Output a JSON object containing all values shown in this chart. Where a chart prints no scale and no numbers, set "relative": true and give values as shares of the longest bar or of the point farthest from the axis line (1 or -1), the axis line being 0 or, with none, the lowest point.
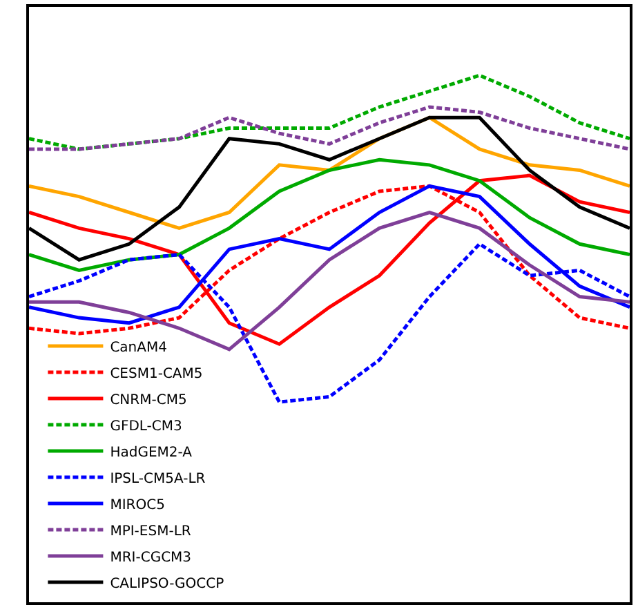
{
  "chart_data": {
    "type": "line",
    "relative": true,
    "legend": "bottom left",
    "categories": [
      null,
      null,
      null,
      null,
      null,
      null,
      null,
      null,
      null,
      null,
      null,
      null,
      null
    ],
    "series": [
      {
        "name": "CanAM4",
        "color": "#ffa500",
        "line_style": "solid",
        "values": [
          0.79,
          0.77,
          0.74,
          0.71,
          0.74,
          0.83,
          0.82,
          0.88,
          0.92,
          0.86,
          0.83,
          0.82,
          0.79
        ]
      },
      {
        "name": "CESM1-CAM5",
        "color": "#ff0000",
        "line_style": "dashed",
        "values": [
          0.52,
          0.51,
          0.52,
          0.54,
          0.63,
          0.69,
          0.74,
          0.78,
          0.79,
          0.74,
          0.62,
          0.54,
          0.52
        ]
      },
      {
        "name": "CNRM-CM5",
        "color": "#ff0000",
        "line_style": "solid",
        "values": [
          0.74,
          0.71,
          0.69,
          0.66,
          0.53,
          0.49,
          0.56,
          0.62,
          0.72,
          0.8,
          0.81,
          0.76,
          0.74
        ]
      },
      {
        "name": "GFDL-CM3",
        "color": "#00aa00",
        "line_style": "dashed",
        "values": [
          0.88,
          0.86,
          0.87,
          0.88,
          0.9,
          0.9,
          0.9,
          0.94,
          0.97,
          1.0,
          0.96,
          0.91,
          0.88
        ]
      },
      {
        "name": "HadGEM2-A",
        "color": "#00aa00",
        "line_style": "solid",
        "values": [
          0.66,
          0.63,
          0.65,
          0.66,
          0.71,
          0.78,
          0.82,
          0.84,
          0.83,
          0.8,
          0.73,
          0.68,
          0.66
        ]
      },
      {
        "name": "IPSL-CM5A-LR",
        "color": "#0000ff",
        "line_style": "dashed",
        "values": [
          0.58,
          0.61,
          0.65,
          0.66,
          0.56,
          0.38,
          0.39,
          0.46,
          0.58,
          0.68,
          0.62,
          0.63,
          0.58
        ]
      },
      {
        "name": "MIROC5",
        "color": "#0000ff",
        "line_style": "solid",
        "values": [
          0.56,
          0.54,
          0.53,
          0.56,
          0.67,
          0.69,
          0.67,
          0.74,
          0.79,
          0.77,
          0.68,
          0.6,
          0.56
        ]
      },
      {
        "name": "MPI-ESM-LR",
        "color": "#7f3f98",
        "line_style": "dashed",
        "values": [
          0.86,
          0.86,
          0.87,
          0.88,
          0.92,
          0.89,
          0.87,
          0.91,
          0.94,
          0.93,
          0.9,
          0.88,
          0.86
        ]
      },
      {
        "name": "MRI-CGCM3",
        "color": "#7f3f98",
        "line_style": "solid",
        "values": [
          0.57,
          0.57,
          0.55,
          0.52,
          0.48,
          0.56,
          0.65,
          0.71,
          0.74,
          0.71,
          0.64,
          0.58,
          0.57
        ]
      },
      {
        "name": "CALIPSO-GOCCP",
        "color": "#000000",
        "line_style": "solid",
        "values": [
          0.71,
          0.65,
          0.68,
          0.75,
          0.88,
          0.87,
          0.84,
          0.88,
          0.92,
          0.92,
          0.82,
          0.75,
          0.71
        ]
      }
    ]
  }
}
